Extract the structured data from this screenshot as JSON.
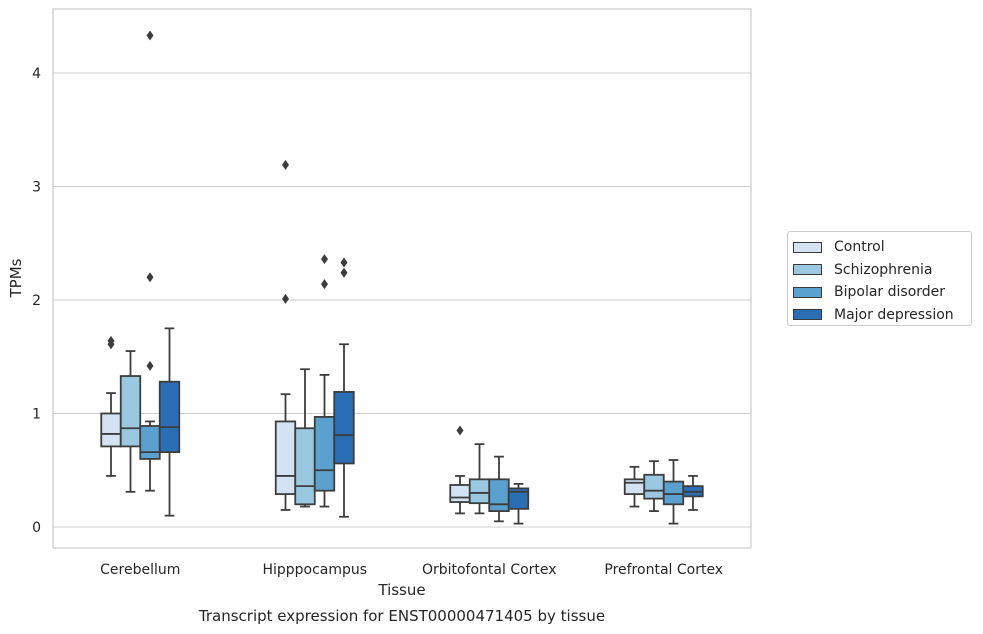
{
  "chart_data": {
    "type": "boxplot",
    "title": "Transcript expression for ENST00000471405 by tissue",
    "xlabel": "Tissue",
    "ylabel": "TPMs",
    "ylim": [
      -0.18,
      4.55
    ],
    "yticks": [
      0,
      1,
      2,
      3,
      4
    ],
    "grid": "horizontal",
    "legend_position": "right",
    "categories": [
      "Cerebellum",
      "Hipppocampus",
      "Orbitofontal Cortex",
      "Prefrontal Cortex"
    ],
    "series": [
      {
        "name": "Control",
        "color": "#d3e3f3",
        "boxes": [
          {
            "whislo": 0.45,
            "q1": 0.71,
            "med": 0.82,
            "q3": 1.0,
            "whishi": 1.18,
            "fliers": [
              1.61,
              1.64
            ]
          },
          {
            "whislo": 0.15,
            "q1": 0.29,
            "med": 0.45,
            "q3": 0.93,
            "whishi": 1.17,
            "fliers": [
              2.01,
              3.19
            ]
          },
          {
            "whislo": 0.12,
            "q1": 0.22,
            "med": 0.26,
            "q3": 0.37,
            "whishi": 0.45,
            "fliers": [
              0.85
            ]
          },
          {
            "whislo": 0.18,
            "q1": 0.29,
            "med": 0.39,
            "q3": 0.42,
            "whishi": 0.53,
            "fliers": []
          }
        ]
      },
      {
        "name": "Schizophrenia",
        "color": "#9ac8e0",
        "boxes": [
          {
            "whislo": 0.31,
            "q1": 0.71,
            "med": 0.87,
            "q3": 1.33,
            "whishi": 1.55,
            "fliers": []
          },
          {
            "whislo": 0.18,
            "q1": 0.2,
            "med": 0.36,
            "q3": 0.87,
            "whishi": 1.39,
            "fliers": []
          },
          {
            "whislo": 0.12,
            "q1": 0.21,
            "med": 0.3,
            "q3": 0.42,
            "whishi": 0.73,
            "fliers": []
          },
          {
            "whislo": 0.14,
            "q1": 0.25,
            "med": 0.32,
            "q3": 0.46,
            "whishi": 0.58,
            "fliers": []
          }
        ]
      },
      {
        "name": "Bipolar disorder",
        "color": "#5aa1cf",
        "boxes": [
          {
            "whislo": 0.32,
            "q1": 0.6,
            "med": 0.66,
            "q3": 0.89,
            "whishi": 0.93,
            "fliers": [
              1.42,
              2.2,
              4.33
            ]
          },
          {
            "whislo": 0.18,
            "q1": 0.32,
            "med": 0.5,
            "q3": 0.97,
            "whishi": 1.34,
            "fliers": [
              2.14,
              2.36
            ]
          },
          {
            "whislo": 0.05,
            "q1": 0.14,
            "med": 0.2,
            "q3": 0.42,
            "whishi": 0.62,
            "fliers": []
          },
          {
            "whislo": 0.03,
            "q1": 0.2,
            "med": 0.29,
            "q3": 0.4,
            "whishi": 0.59,
            "fliers": []
          }
        ]
      },
      {
        "name": "Major depression",
        "color": "#2a6fb6",
        "boxes": [
          {
            "whislo": 0.1,
            "q1": 0.66,
            "med": 0.88,
            "q3": 1.28,
            "whishi": 1.75,
            "fliers": []
          },
          {
            "whislo": 0.09,
            "q1": 0.56,
            "med": 0.81,
            "q3": 1.19,
            "whishi": 1.61,
            "fliers": [
              2.24,
              2.33
            ]
          },
          {
            "whislo": 0.03,
            "q1": 0.16,
            "med": 0.31,
            "q3": 0.34,
            "whishi": 0.38,
            "fliers": []
          },
          {
            "whislo": 0.15,
            "q1": 0.27,
            "med": 0.31,
            "q3": 0.36,
            "whishi": 0.45,
            "fliers": []
          }
        ]
      }
    ]
  }
}
